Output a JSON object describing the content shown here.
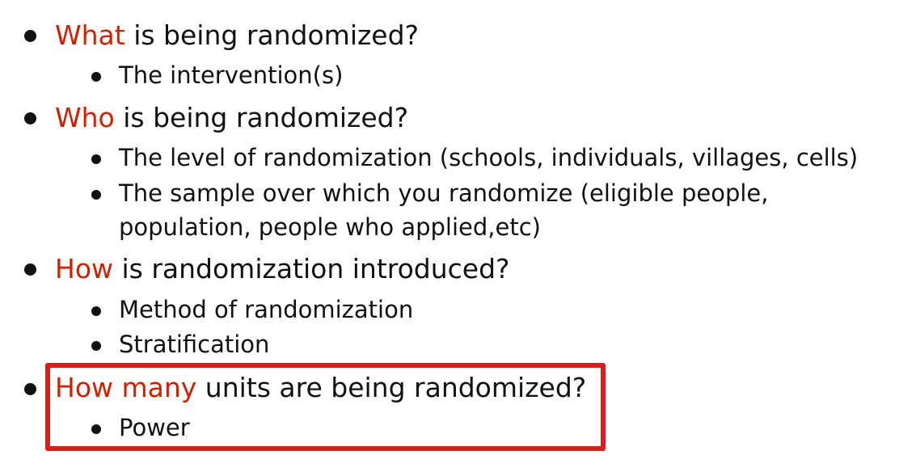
{
  "colors": {
    "accent": "#cc2200",
    "highlight_box": "#d91c1c",
    "text": "#111111"
  },
  "items": [
    {
      "keyword": "What",
      "rest": " is being randomized?",
      "subitems": [
        "The intervention(s)"
      ]
    },
    {
      "keyword": "Who",
      "rest": " is being randomized?",
      "subitems": [
        "The level of randomization (schools, individuals, villages, cells)",
        "The sample over which you randomize (eligible people,",
        "population, people who applied,etc)"
      ]
    },
    {
      "keyword": "How",
      "rest": " is randomization introduced?",
      "subitems": [
        "Method of randomization",
        "Stratification"
      ]
    },
    {
      "keyword": "How many",
      "rest": " units are being randomized?",
      "subitems": [
        "Power"
      ]
    }
  ]
}
